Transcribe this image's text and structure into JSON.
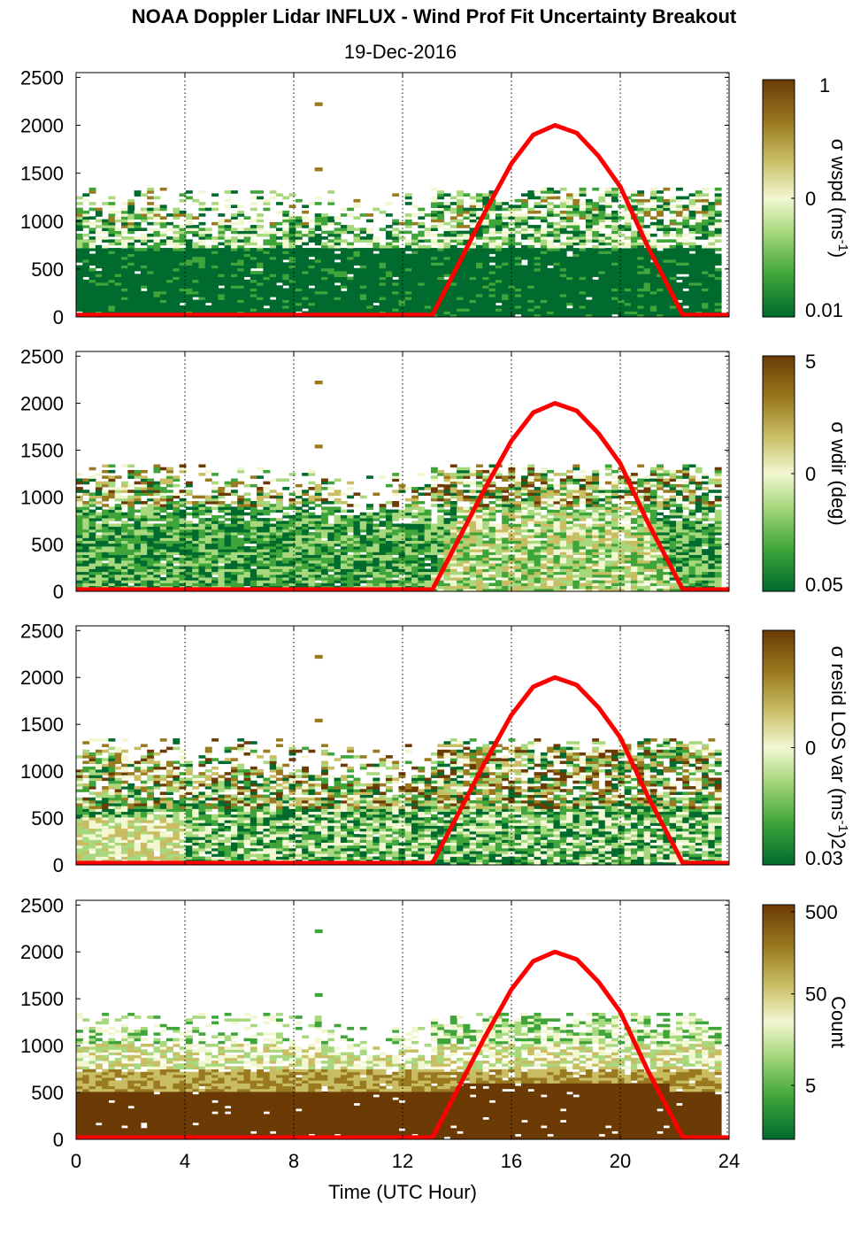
{
  "chart_data": {
    "type": "heatmap",
    "title": "NOAA Doppler Lidar INFLUX - Wind Prof Fit Uncertainty Breakout",
    "subtitle": "19-Dec-2016",
    "xlabel": "Time (UTC Hour)",
    "xlim": [
      0,
      24
    ],
    "x_ticks": [
      "0",
      "4",
      "8",
      "12",
      "16",
      "20",
      "24"
    ],
    "ylim": [
      0,
      2550
    ],
    "y_ticks": [
      "0",
      "500",
      "1000",
      "1500",
      "2000",
      "2500"
    ],
    "x_grid": "dotted vertical lines at 4, 8, 12, 16, 20, 24",
    "overlay_line": {
      "color": "#ff0000",
      "x": [
        0,
        13.1,
        14,
        15,
        16,
        16.8,
        17.6,
        18.4,
        19.2,
        20,
        21,
        22.3,
        24
      ],
      "y": [
        20,
        20,
        520,
        1080,
        1600,
        1900,
        2000,
        1920,
        1680,
        1360,
        740,
        20,
        20
      ]
    },
    "colors": [
      "#006b2e",
      "#3fa53a",
      "#a8d87e",
      "#f2f7d2",
      "#c9bd63",
      "#9a7a20",
      "#6b3a05"
    ],
    "panels": [
      {
        "colorbar_label_base": "σ wspd (ms",
        "colorbar_label_sup": "-1",
        "colorbar_label_end": ")",
        "colorbar_ticks": [
          "1",
          "0",
          "0.01"
        ]
      },
      {
        "colorbar_label_base": "σ wdir (deg)",
        "colorbar_label_sup": "",
        "colorbar_label_end": "",
        "colorbar_ticks": [
          "5",
          "0",
          "0.05"
        ]
      },
      {
        "colorbar_label_base": "σ resid LOS var (ms",
        "colorbar_label_sup": "-1",
        "colorbar_label_end": ")2",
        "colorbar_ticks": [
          "0",
          "0.03"
        ]
      },
      {
        "colorbar_label_base": "Count",
        "colorbar_label_sup": "",
        "colorbar_label_end": "",
        "colorbar_ticks": [
          "500",
          "50",
          "5"
        ]
      }
    ]
  }
}
